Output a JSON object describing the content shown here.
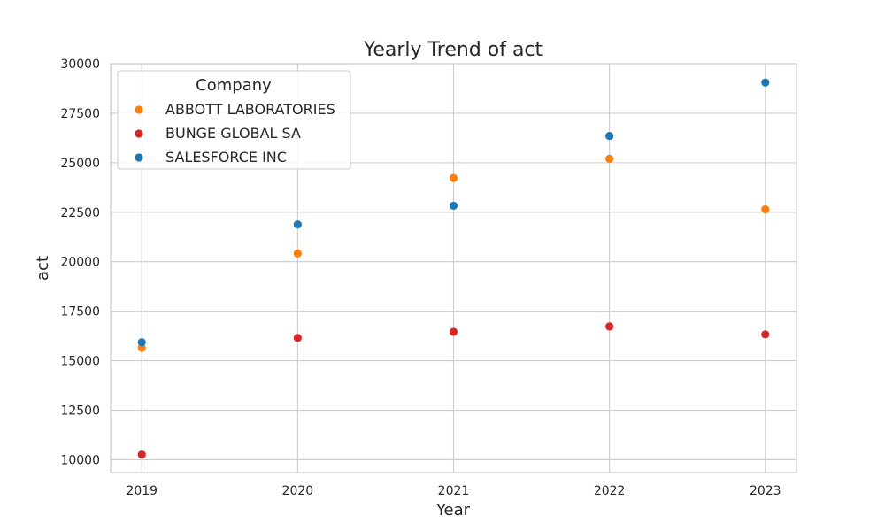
{
  "chart_data": {
    "type": "scatter",
    "title": "Yearly Trend of act",
    "xlabel": "Year",
    "ylabel": "act",
    "x": [
      2019,
      2020,
      2021,
      2022,
      2023
    ],
    "xticks": [
      "2019",
      "2020",
      "2021",
      "2022",
      "2023"
    ],
    "yticks": [
      "10000",
      "12500",
      "15000",
      "17500",
      "20000",
      "22500",
      "25000",
      "27500",
      "30000"
    ],
    "ylim": [
      9350,
      30000
    ],
    "xlim": [
      2018.8,
      2023.2
    ],
    "grid": true,
    "legend": {
      "title": "Company",
      "placement": "top-left"
    },
    "series": [
      {
        "name": "ABBOTT LABORATORIES",
        "color": "#ff7f0e",
        "values": [
          15650,
          20420,
          24230,
          25200,
          22650
        ]
      },
      {
        "name": "BUNGE GLOBAL SA",
        "color": "#d62728",
        "values": [
          10260,
          16150,
          16460,
          16730,
          16330
        ]
      },
      {
        "name": "SALESFORCE INC",
        "color": "#1f77b4",
        "values": [
          15930,
          21880,
          22830,
          26350,
          29050
        ]
      }
    ]
  }
}
